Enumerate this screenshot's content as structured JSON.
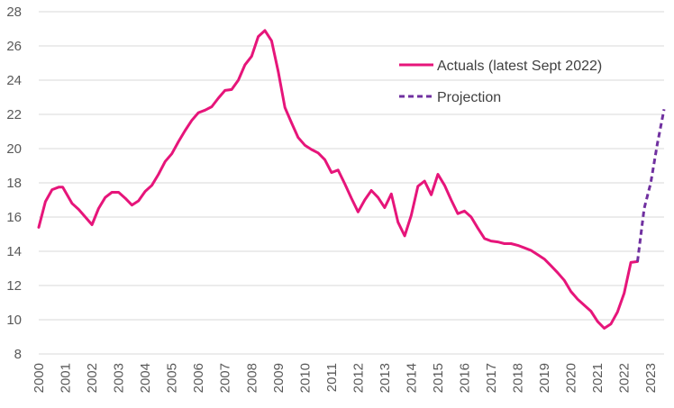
{
  "chart_data": {
    "type": "line",
    "title": "",
    "xlabel": "",
    "ylabel": "",
    "ylim": [
      8,
      28
    ],
    "yticks": [
      8,
      10,
      12,
      14,
      16,
      18,
      20,
      22,
      24,
      26,
      28
    ],
    "xlim": [
      2000,
      2023.5
    ],
    "xticks": [
      "2000",
      "2001",
      "2002",
      "2003",
      "2004",
      "2005",
      "2006",
      "2007",
      "2008",
      "2009",
      "2010",
      "2011",
      "2012",
      "2013",
      "2014",
      "2015",
      "2016",
      "2017",
      "2018",
      "2019",
      "2020",
      "2021",
      "2022",
      "2023"
    ],
    "grid": "horizontal",
    "legend_position": "top-right",
    "colors": {
      "actuals": "#e6157a",
      "projection": "#7030a0",
      "grid": "#d9d9d9",
      "axis_text": "#595959"
    },
    "series": [
      {
        "name": "Actuals (latest Sept 2022)",
        "style": "solid",
        "x": [
          2000.0,
          2000.25,
          2000.5,
          2000.75,
          2000.9,
          2001.25,
          2001.5,
          2001.75,
          2002.0,
          2002.25,
          2002.5,
          2002.75,
          2003.0,
          2003.25,
          2003.5,
          2003.75,
          2004.0,
          2004.25,
          2004.5,
          2004.75,
          2005.0,
          2005.25,
          2005.5,
          2005.75,
          2006.0,
          2006.25,
          2006.5,
          2006.75,
          2007.0,
          2007.25,
          2007.5,
          2007.75,
          2008.0,
          2008.25,
          2008.5,
          2008.75,
          2009.0,
          2009.25,
          2009.5,
          2009.75,
          2010.0,
          2010.25,
          2010.5,
          2010.75,
          2011.0,
          2011.25,
          2011.5,
          2011.75,
          2012.0,
          2012.25,
          2012.5,
          2012.75,
          2013.0,
          2013.25,
          2013.5,
          2013.75,
          2014.0,
          2014.25,
          2014.5,
          2014.75,
          2015.0,
          2015.25,
          2015.5,
          2015.75,
          2016.0,
          2016.25,
          2016.5,
          2016.75,
          2017.0,
          2017.25,
          2017.5,
          2017.75,
          2018.0,
          2018.25,
          2018.5,
          2018.75,
          2019.0,
          2019.25,
          2019.5,
          2019.75,
          2020.0,
          2020.25,
          2020.5,
          2020.75,
          2021.0,
          2021.25,
          2021.5,
          2021.75,
          2022.0,
          2022.25,
          2022.5
        ],
        "y": [
          15.4,
          16.9,
          17.6,
          17.75,
          17.75,
          16.8,
          16.45,
          16.0,
          15.55,
          16.5,
          17.15,
          17.45,
          17.45,
          17.1,
          16.7,
          16.95,
          17.5,
          17.85,
          18.5,
          19.25,
          19.7,
          20.4,
          21.05,
          21.65,
          22.1,
          22.25,
          22.45,
          22.95,
          23.4,
          23.45,
          24.0,
          24.9,
          25.4,
          26.55,
          26.9,
          26.3,
          24.5,
          22.4,
          21.5,
          20.65,
          20.2,
          19.95,
          19.75,
          19.35,
          18.6,
          18.75,
          17.95,
          17.1,
          16.3,
          17.0,
          17.55,
          17.15,
          16.55,
          17.35,
          15.7,
          14.9,
          16.1,
          17.8,
          18.1,
          17.3,
          18.5,
          17.85,
          17.0,
          16.2,
          16.35,
          16.0,
          15.35,
          14.75,
          14.6,
          14.55,
          14.45,
          14.45,
          14.35,
          14.2,
          14.05,
          13.8,
          13.55,
          13.15,
          12.75,
          12.3,
          11.65,
          11.2,
          10.85,
          10.5,
          9.9,
          9.5,
          9.75,
          10.45,
          11.55,
          13.35,
          13.4
        ]
      },
      {
        "name": "Projection",
        "style": "dashed",
        "x": [
          2022.5,
          2022.75,
          2023.0,
          2023.25,
          2023.5
        ],
        "y": [
          13.4,
          16.5,
          18.0,
          20.3,
          22.3
        ]
      }
    ]
  }
}
